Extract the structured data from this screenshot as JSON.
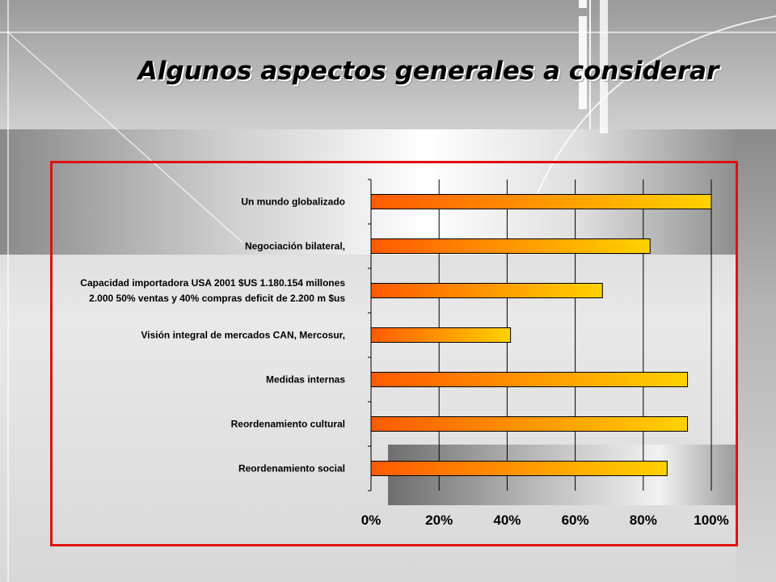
{
  "slide": {
    "title": "Algunos aspectos generales a considerar"
  },
  "colors": {
    "frame": "#e01010",
    "bar_start": "#ff5a00",
    "bar_end": "#ffd200"
  },
  "chart_data": {
    "type": "bar",
    "orientation": "horizontal",
    "categories": [
      "Un mundo globalizado",
      "Negociación bilateral,",
      "Capacidad importadora USA 2001 $US 1.180.154 millones 2.000 50% ventas y 40% compras deficit de 2.200 m $us",
      "Visión integral de mercados CAN, Mercosur,",
      "Medidas internas",
      "Reordenamiento cultural",
      "Reordenamiento social"
    ],
    "category_lines": [
      [
        "Un mundo globalizado"
      ],
      [
        "Negociación bilateral,"
      ],
      [
        "Capacidad importadora USA 2001 $US 1.180.154 millones",
        "2.000 50% ventas y 40% compras deficit de 2.200 m $us"
      ],
      [
        "Visión integral de mercados CAN, Mercosur,"
      ],
      [
        "Medidas internas"
      ],
      [
        "Reordenamiento cultural"
      ],
      [
        "Reordenamiento social"
      ]
    ],
    "values": [
      100,
      82,
      68,
      41,
      93,
      93,
      87
    ],
    "x_ticks": [
      "0%",
      "20%",
      "40%",
      "60%",
      "80%",
      "100%"
    ],
    "xlim": [
      0,
      100
    ],
    "grid": true,
    "legend": "none"
  }
}
